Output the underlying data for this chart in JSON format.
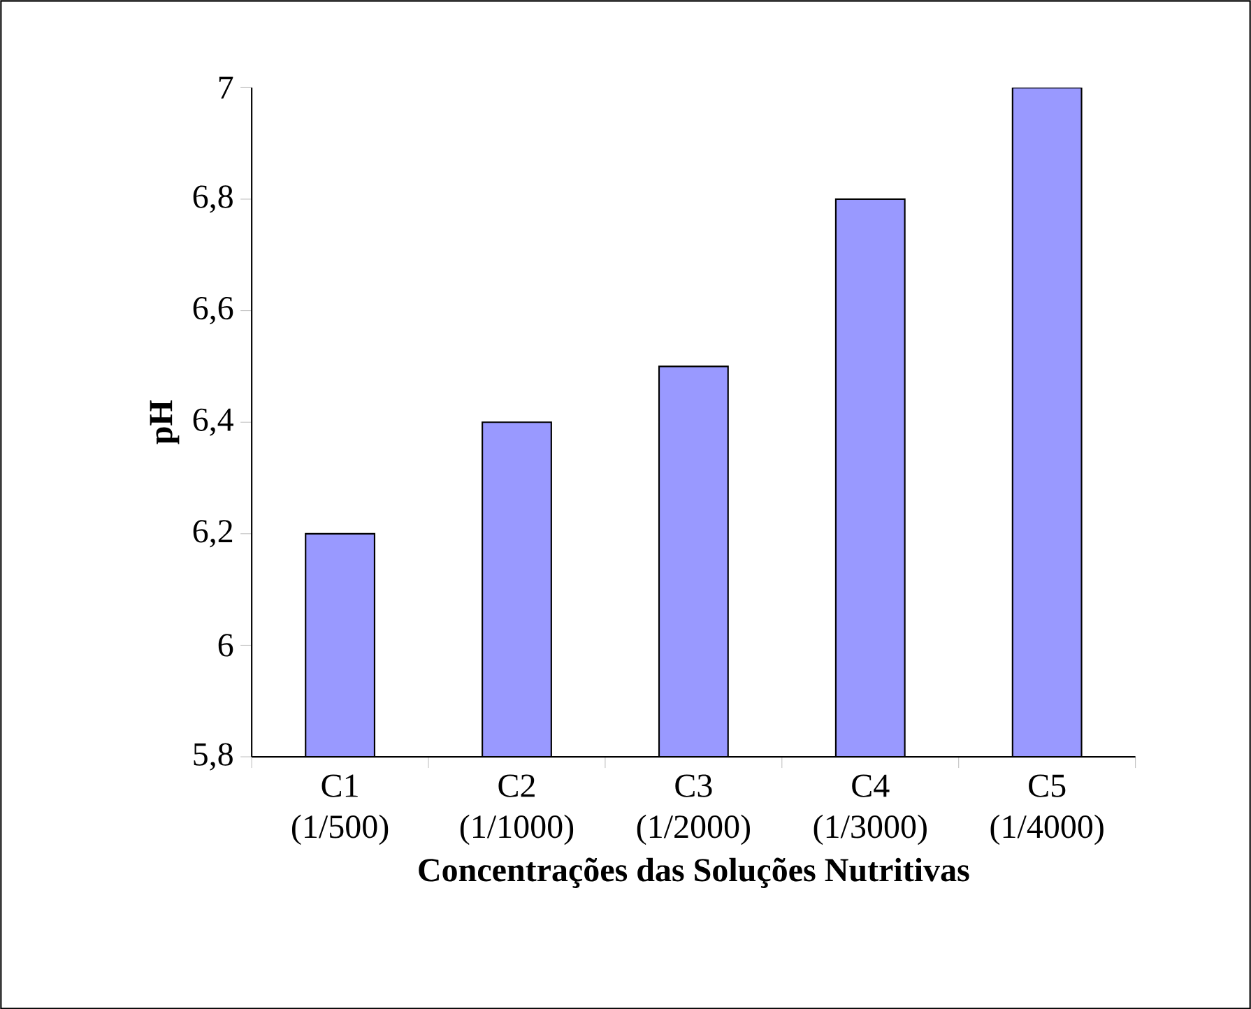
{
  "chart_data": {
    "type": "bar",
    "xlabel": "Concentrações das Soluções Nutritivas",
    "ylabel": "pH",
    "categories": [
      "C1 (1/500)",
      "C2 (1/1000)",
      "C3 (1/2000)",
      "C4 (1/3000)",
      "C5 (1/4000)"
    ],
    "values": [
      6.2,
      6.4,
      6.5,
      6.8,
      7.0
    ],
    "color": "#9999ff",
    "ylim": [
      5.8,
      7
    ],
    "yticks": [
      {
        "value": 5.8,
        "label": "5,8"
      },
      6,
      {
        "value": 6.2,
        "label": "6,2"
      },
      {
        "value": 6.4,
        "label": "6,4"
      },
      {
        "value": 6.6,
        "label": "6,6"
      },
      {
        "value": 6.8,
        "label": "6,8"
      },
      7
    ],
    "grid": false
  }
}
